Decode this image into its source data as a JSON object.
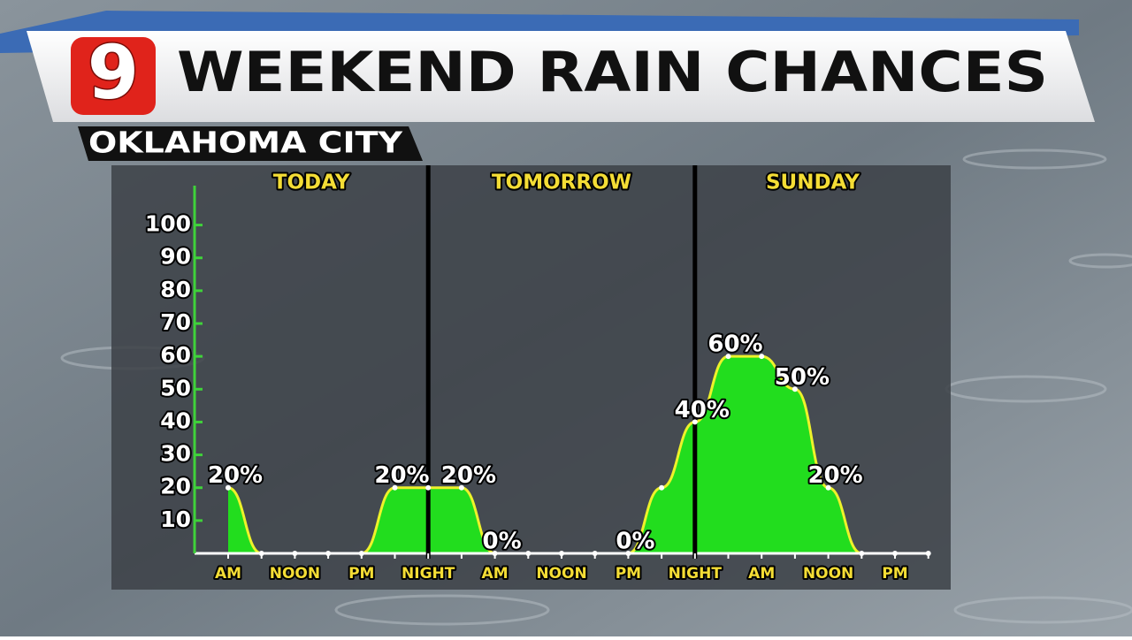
{
  "logo": "9",
  "chart_data": {
    "type": "area",
    "title": "WEEKEND RAIN CHANCES",
    "subtitle": "OKLAHOMA CITY",
    "sections": [
      "TODAY",
      "TOMORROW",
      "SUNDAY"
    ],
    "categories": [
      "AM",
      null,
      "NOON",
      null,
      "PM",
      null,
      "NIGHT",
      null,
      "AM",
      null,
      "NOON",
      null,
      "PM",
      null,
      "NIGHT",
      null,
      "AM",
      null,
      "NOON",
      null,
      "PM",
      null
    ],
    "values": [
      20,
      0,
      0,
      0,
      0,
      20,
      20,
      20,
      0,
      0,
      0,
      0,
      0,
      20,
      40,
      60,
      60,
      50,
      20,
      0,
      0,
      0
    ],
    "value_labels": [
      "20%",
      null,
      null,
      null,
      null,
      "20%",
      null,
      "20%",
      "0%",
      null,
      null,
      null,
      "0%",
      null,
      "40%",
      "60%",
      null,
      "50%",
      "20%",
      null,
      null,
      null
    ],
    "color": "#22dd1e",
    "line_color": "#eef22a",
    "ylim": [
      0,
      112
    ],
    "yticks": [
      10,
      20,
      30,
      40,
      50,
      60,
      70,
      80,
      90,
      100
    ]
  }
}
